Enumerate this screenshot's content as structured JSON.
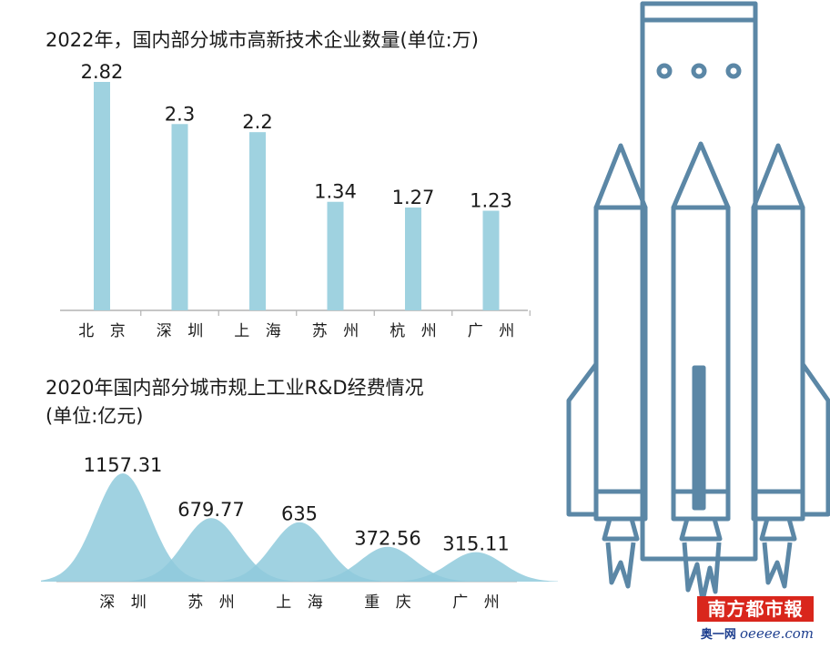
{
  "colors": {
    "bar": "#9fd2e0",
    "wave": "#8fcadc",
    "rocket": "#5b87a6",
    "axis": "#b3b3b3"
  },
  "chart_data": [
    {
      "type": "bar",
      "title": "2022年，国内部分城市高新技术企业数量(单位:万)",
      "categories": [
        "北 京",
        "深 圳",
        "上 海",
        "苏 州",
        "杭 州",
        "广 州"
      ],
      "values": [
        2.82,
        2.3,
        2.2,
        1.34,
        1.27,
        1.23
      ],
      "value_labels": [
        "2.82",
        "2.3",
        "2.2",
        "1.34",
        "1.27",
        "1.23"
      ],
      "ylim": [
        0,
        2.82
      ],
      "grid": false
    },
    {
      "type": "area",
      "title": "2020年国内部分城市规上工业R&D经费情况",
      "subtitle": "(单位:亿元)",
      "categories": [
        "深 圳",
        "苏 州",
        "上 海",
        "重 庆",
        "广 州"
      ],
      "values": [
        1157.31,
        679.77,
        635,
        372.56,
        315.11
      ],
      "value_labels": [
        "1157.31",
        "679.77",
        "635",
        "372.56",
        "315.11"
      ],
      "ylim": [
        0,
        1157.31
      ],
      "grid": false
    }
  ],
  "watermark": {
    "logo_text": "南方都市報",
    "site_prefix": "奥一网",
    "site_domain": "oeeee.com"
  },
  "illustration": {
    "icon": "rocket-icon"
  }
}
